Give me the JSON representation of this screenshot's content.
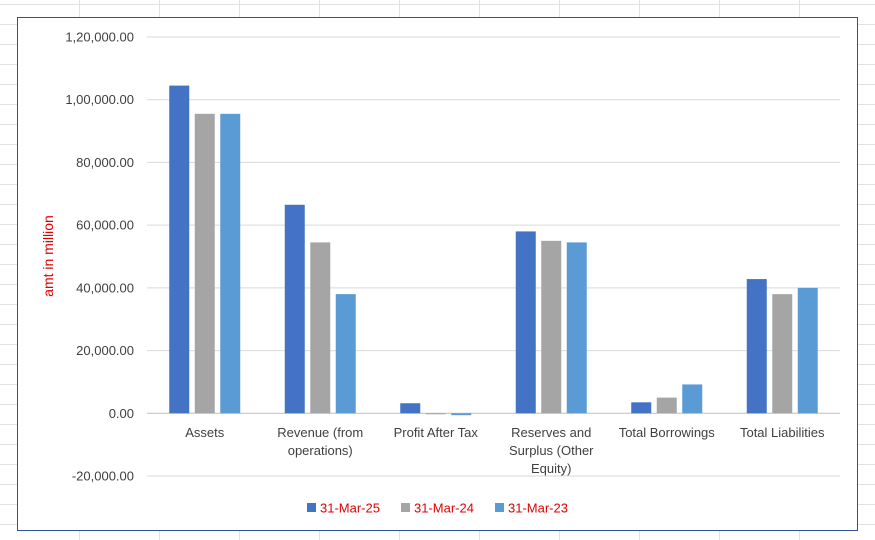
{
  "chart_data": {
    "type": "bar",
    "categories": [
      [
        "Assets"
      ],
      [
        "Revenue (from",
        "operations)"
      ],
      [
        "Profit After Tax"
      ],
      [
        "Reserves and",
        "Surplus (Other",
        "Equity)"
      ],
      [
        "Total Borrowings"
      ],
      [
        "Total Liabilities"
      ]
    ],
    "series": [
      {
        "name": "31-Mar-25",
        "color": "#4472c4",
        "values": [
          104500,
          66500,
          3200,
          58000,
          3500,
          42800
        ]
      },
      {
        "name": "31-Mar-24",
        "color": "#a5a5a5",
        "values": [
          95500,
          54500,
          -300,
          55000,
          5000,
          38000
        ]
      },
      {
        "name": "31-Mar-23",
        "color": "#5b9bd5",
        "values": [
          95500,
          38000,
          -600,
          54500,
          9200,
          40000
        ]
      }
    ],
    "ylabel": "amt in million",
    "ylim": [
      -20000,
      120000
    ],
    "yticks": [
      -20000,
      0,
      20000,
      40000,
      60000,
      80000,
      100000,
      120000
    ],
    "ytick_labels": [
      "-20,000.00",
      "0.00",
      "20,000.00",
      "40,000.00",
      "60,000.00",
      "80,000.00",
      "1,00,000.00",
      "1,20,000.00"
    ],
    "grid": true,
    "legend_position": "bottom"
  }
}
